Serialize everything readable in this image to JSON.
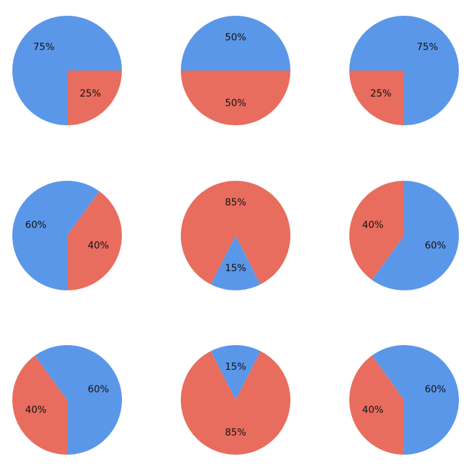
{
  "colors": {
    "blue": "#5b97e8",
    "red": "#e86d5e"
  },
  "chart_data": [
    {
      "type": "pie",
      "title": "",
      "values": [
        75,
        25
      ],
      "labels": [
        "75%",
        "25%"
      ],
      "slice_colors": [
        "blue",
        "red"
      ],
      "startangle_deg": 0,
      "direction": "counterclockwise"
    },
    {
      "type": "pie",
      "title": "",
      "values": [
        50,
        50
      ],
      "labels": [
        "50%",
        "50%"
      ],
      "slice_colors": [
        "blue",
        "red"
      ],
      "startangle_deg": 0,
      "direction": "counterclockwise"
    },
    {
      "type": "pie",
      "title": "",
      "values": [
        75,
        25
      ],
      "labels": [
        "75%",
        "25%"
      ],
      "slice_colors": [
        "blue",
        "red"
      ],
      "startangle_deg": 270,
      "direction": "counterclockwise"
    },
    {
      "type": "pie",
      "title": "",
      "values": [
        40,
        60
      ],
      "labels": [
        "40%",
        "60%"
      ],
      "slice_colors": [
        "red",
        "blue"
      ],
      "startangle_deg": 270,
      "direction": "counterclockwise"
    },
    {
      "type": "pie",
      "title": "",
      "values": [
        15,
        85
      ],
      "labels": [
        "15%",
        "85%"
      ],
      "slice_colors": [
        "blue",
        "red"
      ],
      "startangle_deg": 243,
      "direction": "counterclockwise"
    },
    {
      "type": "pie",
      "title": "",
      "values": [
        60,
        40
      ],
      "labels": [
        "60%",
        "40%"
      ],
      "slice_colors": [
        "blue",
        "red"
      ],
      "startangle_deg": 90,
      "direction": "clockwise"
    },
    {
      "type": "pie",
      "title": "",
      "values": [
        40,
        60
      ],
      "labels": [
        "40%",
        "60%"
      ],
      "slice_colors": [
        "red",
        "blue"
      ],
      "startangle_deg": 270,
      "direction": "clockwise"
    },
    {
      "type": "pie",
      "title": "",
      "values": [
        15,
        85
      ],
      "labels": [
        "15%",
        "85%"
      ],
      "slice_colors": [
        "blue",
        "red"
      ],
      "startangle_deg": 63,
      "direction": "counterclockwise"
    },
    {
      "type": "pie",
      "title": "",
      "values": [
        60,
        40
      ],
      "labels": [
        "60%",
        "40%"
      ],
      "slice_colors": [
        "blue",
        "red"
      ],
      "startangle_deg": 270,
      "direction": "counterclockwise"
    }
  ]
}
